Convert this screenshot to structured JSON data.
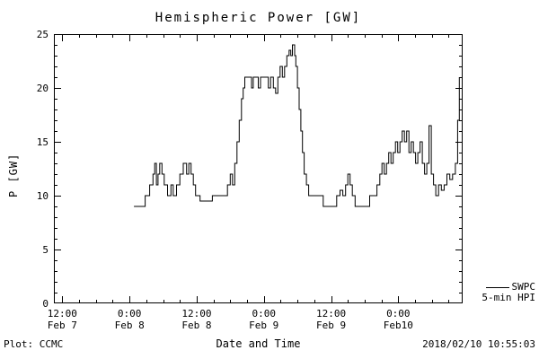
{
  "title": "Hemispheric Power [GW]",
  "footer": {
    "left": "Plot: CCMC",
    "right": "2018/02/10 10:55:03"
  },
  "legend": {
    "line1": "SWPC",
    "line2": "5-min HPI"
  },
  "colors": {
    "line": "#000000",
    "background": "#ffffff"
  },
  "chart_data": {
    "type": "line",
    "title": "Hemispheric Power [GW]",
    "xlabel": "Date and Time",
    "ylabel": "P [GW]",
    "x_unit": "hours since 2018-02-07 00:00",
    "xlim": [
      10.5,
      83.5
    ],
    "ylim": [
      0,
      25
    ],
    "yticks": [
      0,
      5,
      10,
      15,
      20,
      25
    ],
    "y_minor": 1,
    "x_minor": 3,
    "x_major": 12,
    "grid": false,
    "legend_position": "outside-bottom-right",
    "xticks": [
      {
        "hours": 12,
        "time": "12:00",
        "date": "Feb 7"
      },
      {
        "hours": 24,
        "time": "0:00",
        "date": "Feb 8"
      },
      {
        "hours": 36,
        "time": "12:00",
        "date": "Feb 8"
      },
      {
        "hours": 48,
        "time": "0:00",
        "date": "Feb 9"
      },
      {
        "hours": 60,
        "time": "12:00",
        "date": "Feb 9"
      },
      {
        "hours": 72,
        "time": "0:00",
        "date": "Feb10"
      }
    ],
    "series": [
      {
        "name": "SWPC 5-min HPI",
        "color": "#000000",
        "step": true,
        "points": [
          [
            24.8,
            9
          ],
          [
            26.8,
            10
          ],
          [
            27.6,
            11
          ],
          [
            28.2,
            12
          ],
          [
            28.5,
            13
          ],
          [
            28.8,
            11
          ],
          [
            29.1,
            12
          ],
          [
            29.4,
            13
          ],
          [
            29.8,
            12
          ],
          [
            30.2,
            11
          ],
          [
            30.8,
            10
          ],
          [
            31.4,
            11
          ],
          [
            31.8,
            10
          ],
          [
            32.4,
            11
          ],
          [
            33.0,
            12
          ],
          [
            33.6,
            13
          ],
          [
            34.2,
            12
          ],
          [
            34.6,
            13
          ],
          [
            35.0,
            12
          ],
          [
            35.4,
            11
          ],
          [
            35.8,
            10
          ],
          [
            36.6,
            9.5
          ],
          [
            38.8,
            10
          ],
          [
            40.0,
            10
          ],
          [
            41.5,
            11
          ],
          [
            42.0,
            12
          ],
          [
            42.4,
            11
          ],
          [
            42.8,
            13
          ],
          [
            43.2,
            15
          ],
          [
            43.6,
            17
          ],
          [
            44.0,
            19
          ],
          [
            44.3,
            20
          ],
          [
            44.6,
            21
          ],
          [
            45.8,
            20
          ],
          [
            46.1,
            21
          ],
          [
            47.0,
            20
          ],
          [
            47.4,
            21
          ],
          [
            48.4,
            21
          ],
          [
            48.8,
            20
          ],
          [
            49.2,
            21
          ],
          [
            49.7,
            20
          ],
          [
            50.1,
            19.5
          ],
          [
            50.5,
            21
          ],
          [
            50.9,
            22
          ],
          [
            51.3,
            21
          ],
          [
            51.7,
            22
          ],
          [
            52.1,
            23
          ],
          [
            52.5,
            23.5
          ],
          [
            52.8,
            23
          ],
          [
            53.1,
            24
          ],
          [
            53.5,
            23
          ],
          [
            53.7,
            22
          ],
          [
            54.0,
            20
          ],
          [
            54.3,
            18
          ],
          [
            54.6,
            16
          ],
          [
            54.9,
            14
          ],
          [
            55.2,
            12
          ],
          [
            55.6,
            11
          ],
          [
            56.0,
            10
          ],
          [
            58.6,
            9
          ],
          [
            61.0,
            10
          ],
          [
            61.6,
            10.5
          ],
          [
            62.1,
            10
          ],
          [
            62.6,
            11
          ],
          [
            63.0,
            12
          ],
          [
            63.4,
            11
          ],
          [
            63.8,
            10
          ],
          [
            64.3,
            9
          ],
          [
            66.3,
            9
          ],
          [
            66.9,
            10
          ],
          [
            68.2,
            11
          ],
          [
            68.7,
            12
          ],
          [
            69.1,
            13
          ],
          [
            69.5,
            12
          ],
          [
            69.9,
            13
          ],
          [
            70.3,
            14
          ],
          [
            70.7,
            13
          ],
          [
            71.1,
            14
          ],
          [
            71.5,
            15
          ],
          [
            71.9,
            14
          ],
          [
            72.3,
            15
          ],
          [
            72.7,
            16
          ],
          [
            73.1,
            15
          ],
          [
            73.5,
            16
          ],
          [
            73.9,
            14
          ],
          [
            74.3,
            15
          ],
          [
            74.7,
            14
          ],
          [
            75.1,
            13
          ],
          [
            75.5,
            14
          ],
          [
            75.9,
            15
          ],
          [
            76.3,
            13
          ],
          [
            76.7,
            12
          ],
          [
            77.1,
            13
          ],
          [
            77.5,
            16.5
          ],
          [
            77.9,
            12
          ],
          [
            78.3,
            11
          ],
          [
            78.7,
            10
          ],
          [
            79.2,
            11
          ],
          [
            79.7,
            10.5
          ],
          [
            80.2,
            11
          ],
          [
            80.7,
            12
          ],
          [
            81.2,
            11.5
          ],
          [
            81.7,
            12
          ],
          [
            82.2,
            13
          ],
          [
            82.6,
            17
          ],
          [
            82.9,
            21
          ]
        ]
      }
    ]
  }
}
